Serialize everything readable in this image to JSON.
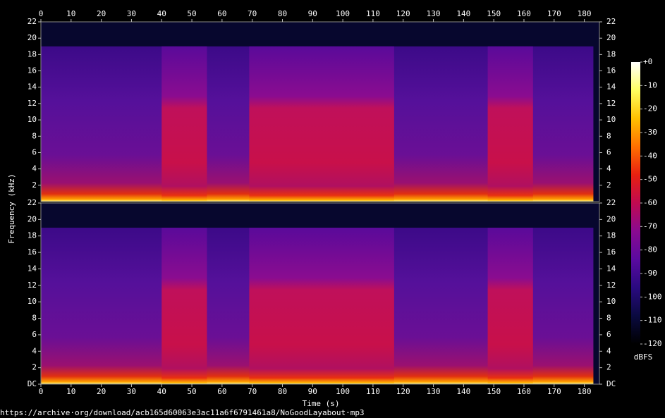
{
  "chart_data": {
    "type": "spectrogram",
    "xlabel": "Time (s)",
    "ylabel": "Frequency (kHz)",
    "footer": "https://archive·org/download/acb165d60063e3ac11a6f6791461a8/NoGoodLayabout·mp3",
    "xlim": [
      0,
      185
    ],
    "xticks": [
      0,
      10,
      20,
      30,
      40,
      50,
      60,
      70,
      80,
      90,
      100,
      110,
      120,
      130,
      140,
      150,
      160,
      170,
      180
    ],
    "ylim": [
      0,
      22
    ],
    "panels": [
      {
        "yticks": [
          2,
          4,
          6,
          8,
          10,
          12,
          14,
          16,
          18,
          20,
          22
        ]
      },
      {
        "yticks": [
          {
            "value": 0,
            "label": "DC"
          },
          2,
          4,
          6,
          8,
          10,
          12,
          14,
          16,
          18,
          20,
          22
        ]
      }
    ],
    "signal": {
      "end": 183,
      "cutoff": 19
    },
    "segments": [
      {
        "start": 40,
        "end": 55
      },
      {
        "start": 69,
        "end": 117
      },
      {
        "start": 148,
        "end": 163
      }
    ],
    "colorbar": {
      "label": "dBFS",
      "clim": [
        -120,
        0
      ],
      "ticks": [
        {
          "value": 0,
          "label": "+0"
        },
        -10,
        -20,
        -30,
        -40,
        -50,
        -60,
        -70,
        -80,
        -90,
        -100,
        -110,
        -120
      ],
      "colors": [
        "#000000",
        "#0a0a40",
        "#2a0a80",
        "#5a0aa0",
        "#8a0a90",
        "#c00a50",
        "#e82010",
        "#ff7000",
        "#ffc000",
        "#ffff60",
        "#ffffff"
      ]
    }
  }
}
